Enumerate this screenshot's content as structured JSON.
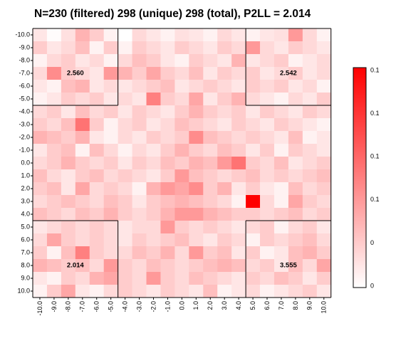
{
  "chart_data": {
    "type": "heatmap",
    "title": "N=230 (filtered) 298 (unique) 298 (total), P2LL = 2.014",
    "x_ticks": [
      "-10.0",
      "-9.0",
      "-8.0",
      "-7.0",
      "-6.0",
      "-5.0",
      "-4.0",
      "-3.0",
      "-2.0",
      "-1.0",
      "0.0",
      "1.0",
      "2.0",
      "3.0",
      "4.0",
      "5.0",
      "6.0",
      "7.0",
      "8.0",
      "9.0",
      "10.0"
    ],
    "y_ticks": [
      "-10.0",
      "-9.0",
      "-8.0",
      "-7.0",
      "-6.0",
      "-5.0",
      "-4.0",
      "-3.0",
      "-2.0",
      "-1.0",
      "0.0",
      "1.0",
      "2.0",
      "3.0",
      "4.0",
      "5.0",
      "6.0",
      "7.0",
      "8.0",
      "9.0",
      "10.0"
    ],
    "colorbar_ticks": [
      "0.1",
      "0.1",
      "0.1",
      "0.1",
      "0",
      "0"
    ],
    "color_low": "#ffffff",
    "color_high": "#ff0000",
    "quadrant_values": {
      "top_left": "2.560",
      "top_right": "2.542",
      "bottom_left": "2.014",
      "bottom_right": "3.555"
    },
    "values": [
      [
        0.1,
        0.01,
        0.12,
        0.3,
        0.2,
        0.05,
        0.0,
        0.15,
        0.1,
        0.05,
        0.12,
        0.1,
        0.05,
        0.15,
        0.1,
        0.05,
        0.1,
        0.12,
        0.4,
        0.15,
        0.05
      ],
      [
        0.2,
        0.1,
        0.15,
        0.25,
        0.05,
        0.2,
        0.05,
        0.2,
        0.15,
        0.1,
        0.2,
        0.15,
        0.1,
        0.2,
        0.15,
        0.4,
        0.15,
        0.1,
        0.2,
        0.15,
        0.1
      ],
      [
        0.05,
        0.15,
        0.2,
        0.1,
        0.15,
        0.05,
        0.15,
        0.25,
        0.2,
        0.1,
        0.05,
        0.2,
        0.15,
        0.1,
        0.3,
        0.1,
        0.15,
        0.2,
        0.05,
        0.1,
        0.15
      ],
      [
        0.15,
        0.45,
        0.2,
        0.15,
        0.1,
        0.4,
        0.3,
        0.2,
        0.35,
        0.2,
        0.15,
        0.25,
        0.1,
        0.2,
        0.15,
        0.2,
        0.1,
        0.15,
        0.2,
        0.1,
        0.15
      ],
      [
        0.1,
        0.05,
        0.25,
        0.3,
        0.1,
        0.15,
        0.1,
        0.15,
        0.2,
        0.25,
        0.1,
        0.15,
        0.2,
        0.15,
        0.1,
        0.2,
        0.15,
        0.2,
        0.1,
        0.15,
        0.05
      ],
      [
        0.05,
        0.1,
        0.2,
        0.15,
        0.2,
        0.1,
        0.15,
        0.1,
        0.5,
        0.2,
        0.15,
        0.35,
        0.1,
        0.2,
        0.3,
        0.15,
        0.1,
        0.05,
        0.15,
        0.1,
        0.2
      ],
      [
        0.15,
        0.2,
        0.1,
        0.25,
        0.15,
        0.2,
        0.1,
        0.2,
        0.15,
        0.1,
        0.2,
        0.3,
        0.2,
        0.15,
        0.2,
        0.1,
        0.2,
        0.15,
        0.1,
        0.2,
        0.15
      ],
      [
        0.2,
        0.15,
        0.25,
        0.55,
        0.2,
        0.05,
        0.15,
        0.2,
        0.1,
        0.15,
        0.25,
        0.2,
        0.15,
        0.1,
        0.2,
        0.15,
        0.1,
        0.2,
        0.15,
        0.1,
        0.05
      ],
      [
        0.3,
        0.25,
        0.2,
        0.3,
        0.1,
        0.05,
        0.15,
        0.1,
        0.2,
        0.15,
        0.2,
        0.45,
        0.25,
        0.2,
        0.15,
        0.2,
        0.15,
        0.1,
        0.25,
        0.05,
        0.1
      ],
      [
        0.1,
        0.2,
        0.25,
        0.05,
        0.25,
        0.15,
        0.05,
        0.15,
        0.1,
        0.2,
        0.3,
        0.2,
        0.15,
        0.25,
        0.2,
        0.1,
        0.2,
        0.05,
        0.2,
        0.15,
        0.1
      ],
      [
        0.15,
        0.2,
        0.3,
        0.2,
        0.15,
        0.2,
        0.1,
        0.2,
        0.15,
        0.25,
        0.2,
        0.3,
        0.25,
        0.4,
        0.55,
        0.2,
        0.15,
        0.25,
        0.1,
        0.15,
        0.2
      ],
      [
        0.25,
        0.15,
        0.1,
        0.2,
        0.25,
        0.15,
        0.2,
        0.15,
        0.1,
        0.2,
        0.4,
        0.25,
        0.2,
        0.15,
        0.2,
        0.25,
        0.15,
        0.2,
        0.15,
        0.2,
        0.25
      ],
      [
        0.2,
        0.25,
        0.1,
        0.35,
        0.15,
        0.2,
        0.15,
        0.05,
        0.3,
        0.4,
        0.35,
        0.45,
        0.2,
        0.3,
        0.1,
        0.2,
        0.1,
        0.05,
        0.25,
        0.15,
        0.2
      ],
      [
        0.15,
        0.2,
        0.25,
        0.2,
        0.15,
        0.25,
        0.2,
        0.1,
        0.2,
        0.25,
        0.3,
        0.25,
        0.2,
        0.15,
        0.05,
        1.0,
        0.15,
        0.05,
        0.35,
        0.2,
        0.15
      ],
      [
        0.25,
        0.2,
        0.15,
        0.25,
        0.2,
        0.3,
        0.2,
        0.15,
        0.2,
        0.3,
        0.4,
        0.4,
        0.3,
        0.25,
        0.2,
        0.2,
        0.15,
        0.2,
        0.25,
        0.15,
        0.2
      ],
      [
        0.1,
        0.15,
        0.2,
        0.15,
        0.2,
        0.15,
        0.1,
        0.15,
        0.15,
        0.4,
        0.2,
        0.15,
        0.2,
        0.15,
        0.1,
        0.15,
        0.2,
        0.05,
        0.15,
        0.2,
        0.1
      ],
      [
        0.15,
        0.35,
        0.2,
        0.15,
        0.2,
        0.15,
        0.1,
        0.2,
        0.15,
        0.2,
        0.25,
        0.15,
        0.1,
        0.2,
        0.15,
        0.05,
        0.2,
        0.15,
        0.2,
        0.25,
        0.15
      ],
      [
        0.2,
        0.05,
        0.25,
        0.5,
        0.2,
        0.15,
        0.15,
        0.25,
        0.2,
        0.3,
        0.15,
        0.4,
        0.2,
        0.25,
        0.1,
        0.2,
        0.05,
        0.1,
        0.25,
        0.3,
        0.2
      ],
      [
        0.3,
        0.25,
        0.2,
        0.25,
        0.15,
        0.4,
        0.2,
        0.15,
        0.25,
        0.2,
        0.15,
        0.2,
        0.25,
        0.3,
        0.25,
        0.15,
        0.2,
        0.1,
        0.25,
        0.15,
        0.35
      ],
      [
        0.1,
        0.05,
        0.2,
        0.15,
        0.3,
        0.35,
        0.2,
        0.15,
        0.4,
        0.2,
        0.15,
        0.25,
        0.2,
        0.15,
        0.1,
        0.2,
        0.15,
        0.25,
        0.2,
        0.1,
        0.2
      ],
      [
        0.05,
        0.2,
        0.35,
        0.1,
        0.05,
        0.15,
        0.2,
        0.15,
        0.1,
        0.2,
        0.15,
        0.1,
        0.25,
        0.05,
        0.1,
        0.15,
        0.05,
        0.1,
        0.15,
        0.2,
        0.1
      ]
    ]
  }
}
